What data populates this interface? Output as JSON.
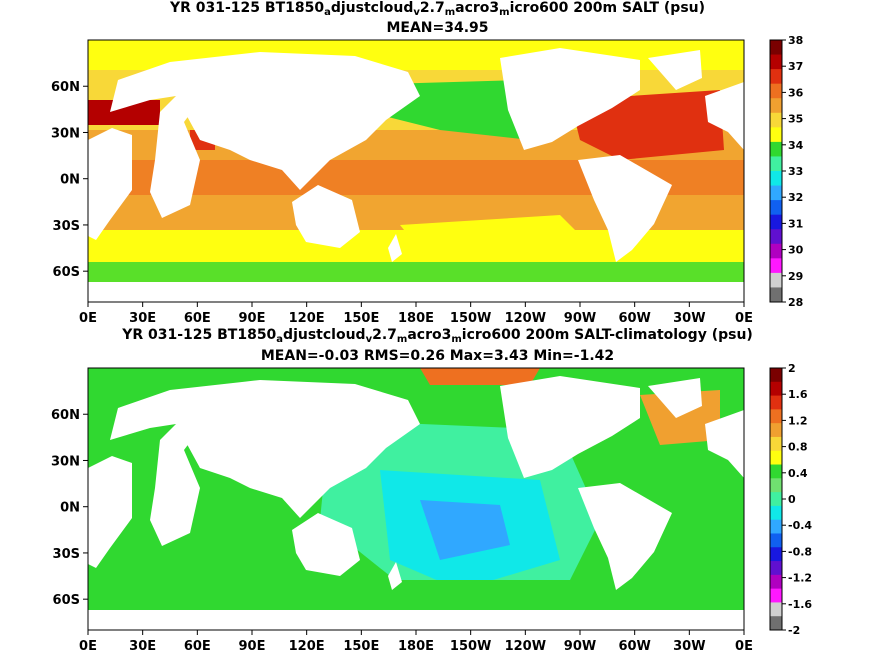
{
  "chart_data": [
    {
      "type": "heatmap",
      "title_parts": [
        {
          "t": "YR 031-125 BT1850"
        },
        {
          "t": "a",
          "sub": true
        },
        {
          "t": "djustcloud"
        },
        {
          "t": "v",
          "sub": true
        },
        {
          "t": "2.7"
        },
        {
          "t": "m",
          "sub": true
        },
        {
          "t": "acro3"
        },
        {
          "t": "m",
          "sub": true
        },
        {
          "t": "icro600 200m SALT (psu)"
        }
      ],
      "subtitle": "MEAN=34.95",
      "xticks": [
        "0E",
        "30E",
        "60E",
        "90E",
        "120E",
        "150E",
        "180E",
        "150W",
        "120W",
        "90W",
        "60W",
        "30W",
        "0E"
      ],
      "yticks": [
        "60N",
        "30N",
        "0N",
        "30S",
        "60S"
      ],
      "colorbar": {
        "labels": [
          "38",
          "37",
          "36",
          "35",
          "34",
          "33",
          "32",
          "31",
          "30",
          "29",
          "28"
        ],
        "colors": [
          "#7a0000",
          "#b40000",
          "#e03010",
          "#ee7020",
          "#f0a030",
          "#f8d838",
          "#ffff10",
          "#30d830",
          "#40f0a0",
          "#10e8e8",
          "#30a8ff",
          "#1060f0",
          "#1818e0",
          "#6010d0",
          "#b000c0",
          "#ff18ff",
          "#d0d0d0",
          "#707070"
        ]
      },
      "stats": {
        "mean": 34.95
      }
    },
    {
      "type": "heatmap",
      "title_parts": [
        {
          "t": "YR 031-125 BT1850"
        },
        {
          "t": "a",
          "sub": true
        },
        {
          "t": "djustcloud"
        },
        {
          "t": "v",
          "sub": true
        },
        {
          "t": "2.7"
        },
        {
          "t": "m",
          "sub": true
        },
        {
          "t": "acro3"
        },
        {
          "t": "m",
          "sub": true
        },
        {
          "t": "icro600 200m SALT-climatology (psu)"
        }
      ],
      "subtitle": "MEAN=-0.03   RMS=0.26   Max=3.43   Min=-1.42",
      "xticks": [
        "0E",
        "30E",
        "60E",
        "90E",
        "120E",
        "150E",
        "180E",
        "150W",
        "120W",
        "90W",
        "60W",
        "30W",
        "0E"
      ],
      "yticks": [
        "60N",
        "30N",
        "0N",
        "30S",
        "60S"
      ],
      "colorbar": {
        "labels": [
          "2",
          "1.6",
          "1.2",
          "0.8",
          "0.4",
          "0",
          "-0.4",
          "-0.8",
          "-1.2",
          "-1.6",
          "-2"
        ],
        "colors": [
          "#7a0000",
          "#b40000",
          "#e03010",
          "#ee7020",
          "#f0a030",
          "#f8d838",
          "#ffff10",
          "#30d830",
          "#70e070",
          "#40f0a0",
          "#10e8e8",
          "#30a8ff",
          "#1060f0",
          "#1818e0",
          "#6010d0",
          "#b000c0",
          "#ff18ff",
          "#d0d0d0",
          "#707070"
        ]
      },
      "stats": {
        "mean": -0.03,
        "rms": 0.26,
        "max": 3.43,
        "min": -1.42
      }
    }
  ]
}
